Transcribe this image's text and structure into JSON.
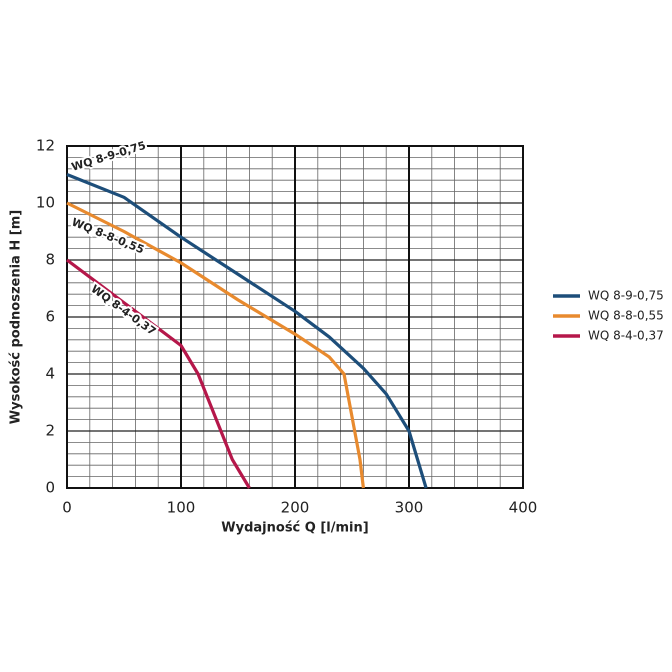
{
  "chart_data": {
    "type": "line",
    "x_label": "Wydajność Q [l/min]",
    "y_label": "Wysokość podnoszenia H [m]",
    "xlim": [
      0,
      400
    ],
    "ylim": [
      0,
      12
    ],
    "xticks": [
      0,
      100,
      200,
      300,
      400
    ],
    "yticks": [
      0,
      2,
      4,
      6,
      8,
      10,
      12
    ],
    "x_minor_ticks": [
      20,
      40,
      60,
      80,
      120,
      140,
      160,
      180,
      220,
      240,
      260,
      280,
      320,
      340,
      360,
      380
    ],
    "y_minor_ticks": [
      0.4,
      0.8,
      1.2,
      1.6,
      2.4,
      2.8,
      3.2,
      3.6,
      4.4,
      4.8,
      5.2,
      5.6,
      6.4,
      6.8,
      7.2,
      7.6,
      8.4,
      8.8,
      9.2,
      9.6,
      10.4,
      10.8,
      11.2,
      11.6
    ],
    "grid": true,
    "legend": "right",
    "series": [
      {
        "name": "WQ 8-9-0,75",
        "color": "#1d4e7a",
        "x": [
          0,
          50,
          100,
          150,
          200,
          230,
          260,
          280,
          300,
          315
        ],
        "values": [
          11,
          10.2,
          8.8,
          7.5,
          6.2,
          5.3,
          4.2,
          3.3,
          2,
          0
        ]
      },
      {
        "name": "WQ 8-8-0,55",
        "color": "#e88a2e",
        "x": [
          0,
          50,
          100,
          150,
          200,
          230,
          243,
          250,
          257,
          260
        ],
        "values": [
          10,
          9,
          7.9,
          6.6,
          5.4,
          4.6,
          4,
          2.5,
          1,
          0
        ]
      },
      {
        "name": "WQ 8-4-0,37",
        "color": "#b5174a",
        "x": [
          0,
          50,
          100,
          115,
          130,
          145,
          160
        ],
        "values": [
          8,
          6.5,
          5,
          4,
          2.5,
          1,
          0
        ]
      }
    ]
  }
}
